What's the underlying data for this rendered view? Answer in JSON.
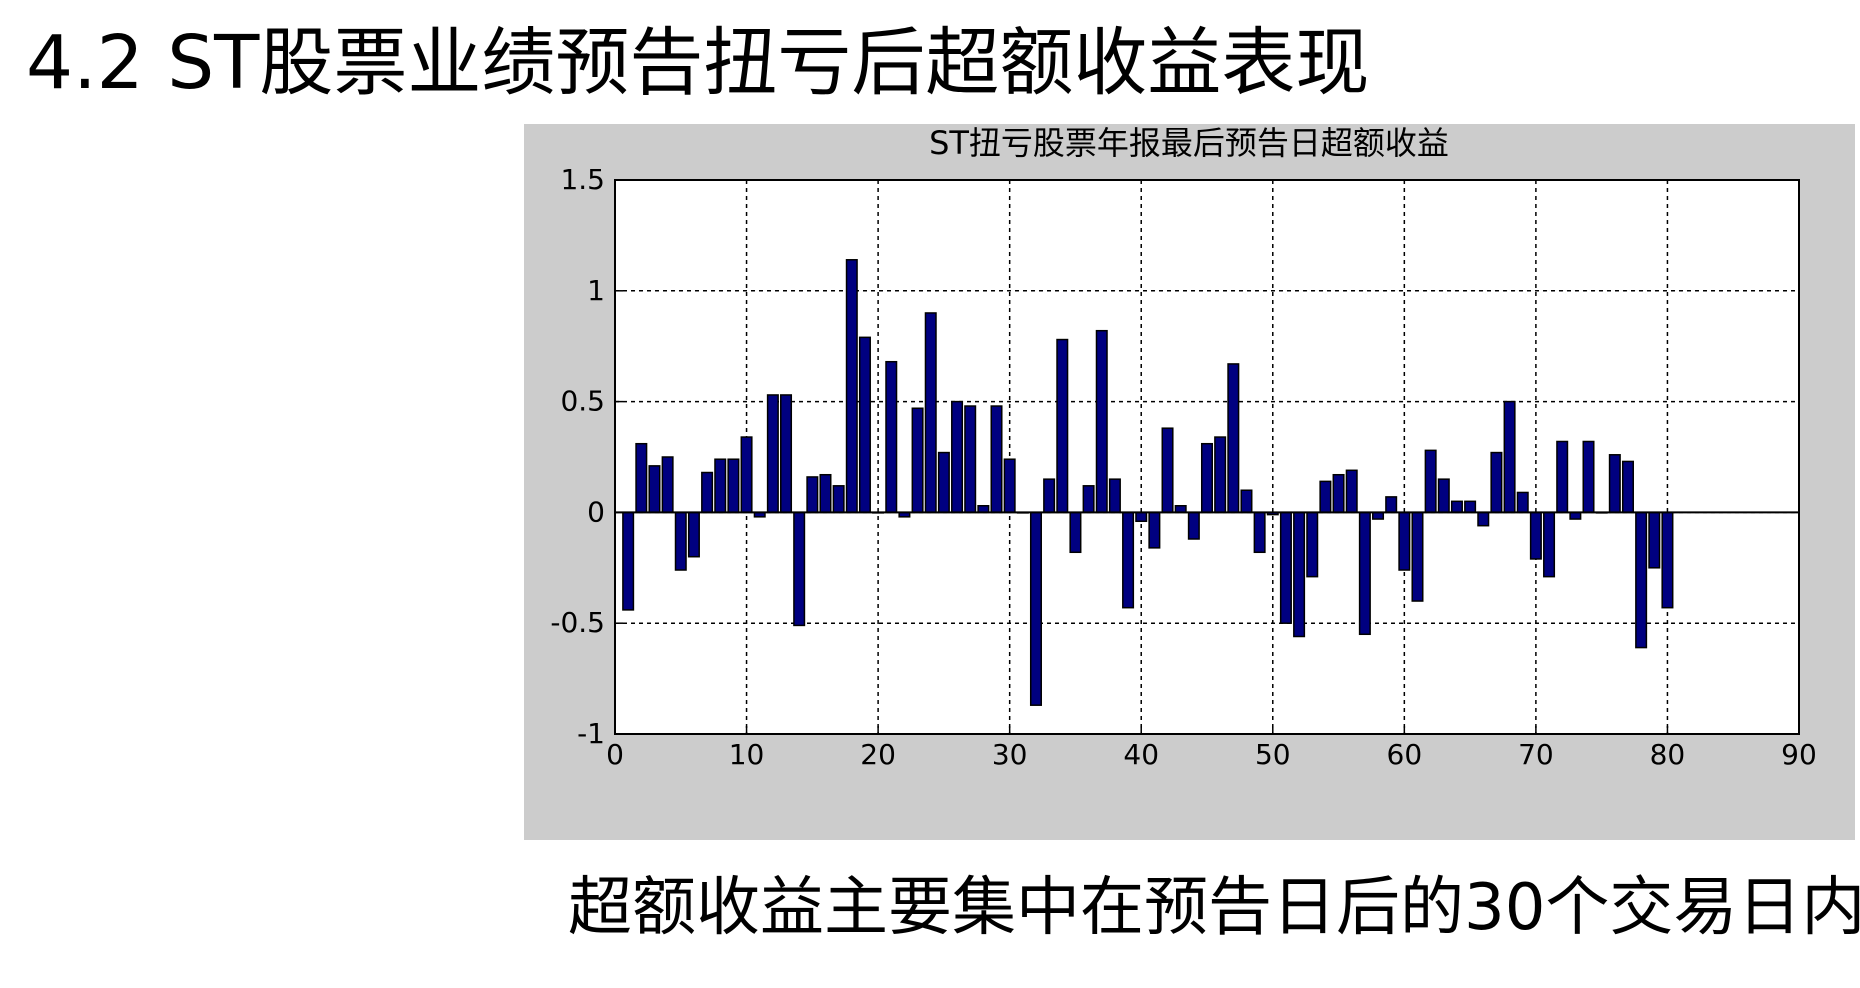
{
  "slide": {
    "title": "4.2 ST股票业绩预告扭亏后超额收益表现",
    "caption": "超额收益主要集中在预告日后的30个交易日内"
  },
  "colors": {
    "bar_fill": "#000080",
    "bar_edge": "#000000",
    "panel_bg": "#cccccc",
    "plot_bg": "#ffffff",
    "grid": "#000000"
  },
  "chart_data": {
    "type": "bar",
    "title": "ST扭亏股票年报最后预告日超额收益",
    "xlabel": "",
    "ylabel": "",
    "xlim": [
      0,
      90
    ],
    "ylim": [
      -1,
      1.5
    ],
    "grid": true,
    "xticks": [
      "0",
      "10",
      "20",
      "30",
      "40",
      "50",
      "60",
      "70",
      "80",
      "90"
    ],
    "yticks": [
      "1.5",
      "1",
      "0.5",
      "0",
      "-0.5",
      "-1"
    ],
    "x": [
      1,
      2,
      3,
      4,
      5,
      6,
      7,
      8,
      9,
      10,
      11,
      12,
      13,
      14,
      15,
      16,
      17,
      18,
      19,
      20,
      21,
      22,
      23,
      24,
      25,
      26,
      27,
      28,
      29,
      30,
      31,
      32,
      33,
      34,
      35,
      36,
      37,
      38,
      39,
      40,
      41,
      42,
      43,
      44,
      45,
      46,
      47,
      48,
      49,
      50,
      51,
      52,
      53,
      54,
      55,
      56,
      57,
      58,
      59,
      60,
      61,
      62,
      63,
      64,
      65,
      66,
      67,
      68,
      69,
      70,
      71,
      72,
      73,
      74,
      75,
      76,
      77,
      78,
      79,
      80
    ],
    "values": [
      -0.44,
      0.31,
      0.21,
      0.25,
      -0.26,
      -0.2,
      0.18,
      0.24,
      0.24,
      0.34,
      -0.02,
      0.53,
      0.53,
      -0.51,
      0.16,
      0.17,
      0.12,
      1.14,
      0.79,
      0.0,
      0.68,
      -0.02,
      0.47,
      0.9,
      0.27,
      0.5,
      0.48,
      0.03,
      0.48,
      0.24,
      0.0,
      -0.87,
      0.15,
      0.78,
      -0.18,
      0.12,
      0.82,
      0.15,
      -0.43,
      -0.04,
      -0.16,
      0.38,
      0.03,
      -0.12,
      0.31,
      0.34,
      0.67,
      0.1,
      -0.18,
      -0.01,
      -0.5,
      -0.56,
      -0.29,
      0.14,
      0.17,
      0.19,
      -0.55,
      -0.03,
      0.07,
      -0.26,
      -0.4,
      0.28,
      0.15,
      0.05,
      0.05,
      -0.06,
      0.27,
      0.5,
      0.09,
      -0.21,
      -0.29,
      0.32,
      -0.03,
      0.32,
      0.0,
      0.26,
      0.23,
      -0.61,
      -0.25,
      -0.43
    ]
  }
}
